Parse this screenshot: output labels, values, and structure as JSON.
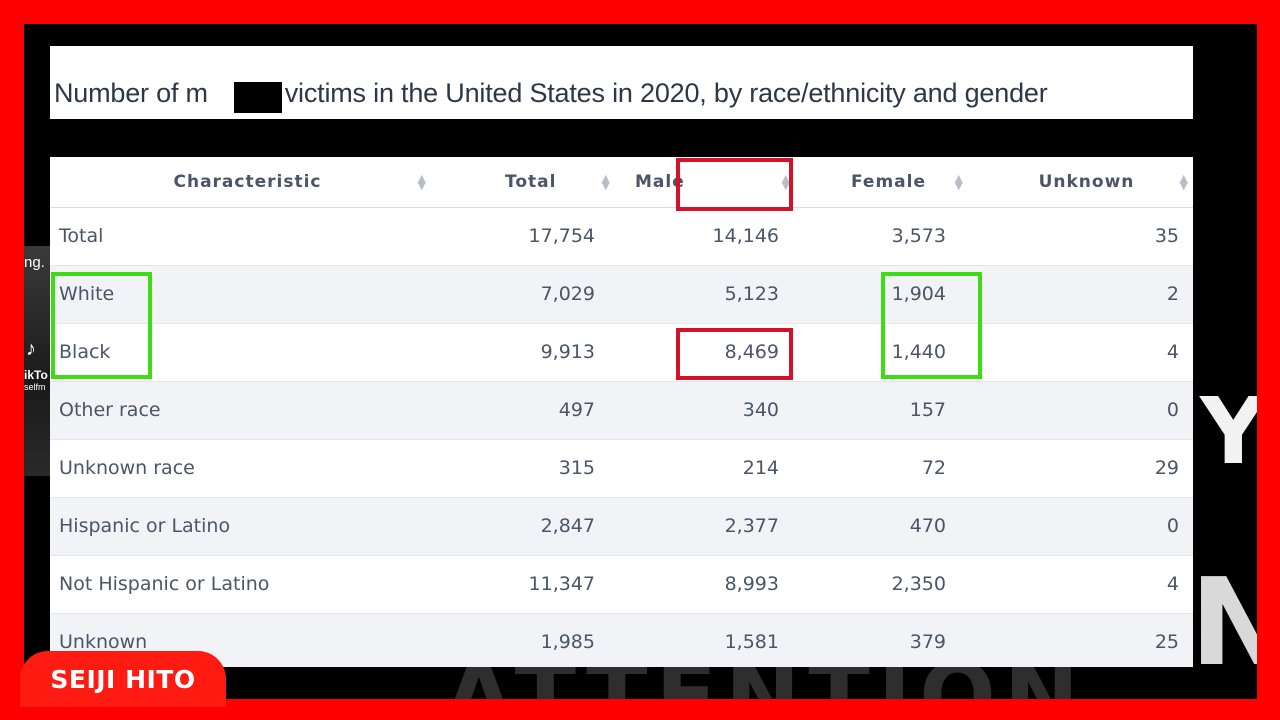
{
  "title": "Number of m▇▇er victims in the United States in 2020, by race/ethnicity and gender",
  "title_parts": {
    "before": "Number of m",
    "after": "er victims in the United States in 2020, by race/ethnicity and gender"
  },
  "table": {
    "headers": [
      "Characteristic",
      "Total",
      "Male",
      "Female",
      "Unknown"
    ],
    "rows": [
      {
        "label": "Total",
        "total": "17,754",
        "male": "14,146",
        "female": "3,573",
        "unknown": "35"
      },
      {
        "label": "White",
        "total": "7,029",
        "male": "5,123",
        "female": "1,904",
        "unknown": "2"
      },
      {
        "label": "Black",
        "total": "9,913",
        "male": "8,469",
        "female": "1,440",
        "unknown": "4"
      },
      {
        "label": "Other race",
        "total": "497",
        "male": "340",
        "female": "157",
        "unknown": "0"
      },
      {
        "label": "Unknown race",
        "total": "315",
        "male": "214",
        "female": "72",
        "unknown": "29"
      },
      {
        "label": "Hispanic or Latino",
        "total": "2,847",
        "male": "2,377",
        "female": "470",
        "unknown": "0"
      },
      {
        "label": "Not Hispanic or Latino",
        "total": "11,347",
        "male": "8,993",
        "female": "2,350",
        "unknown": "4"
      },
      {
        "label": "Unknown",
        "total": "1,985",
        "male": "1,581",
        "female": "379",
        "unknown": "25"
      }
    ]
  },
  "watermark": "SEIJI HITO",
  "background_text": {
    "letter_y": "Y",
    "letter_n": "N",
    "attention": "ATTENTION"
  },
  "tiktok_fragment": {
    "line1": "ng.",
    "line2": "ikTo",
    "line3": "selfm"
  },
  "colors": {
    "frame": "#ff0000",
    "highlight_red": "#d3122a",
    "highlight_green": "#3ddc14",
    "badge": "#ff1a12"
  }
}
